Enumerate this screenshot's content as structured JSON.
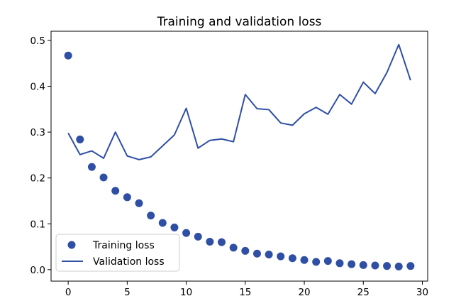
{
  "chart_data": {
    "type": "scatter",
    "title": "Training and validation loss",
    "xlabel": "",
    "ylabel": "",
    "xlim": [
      -1.45,
      30.45
    ],
    "ylim": [
      -0.025,
      0.52
    ],
    "xticks": [
      0,
      5,
      10,
      15,
      20,
      25,
      30
    ],
    "yticks": [
      0.0,
      0.1,
      0.2,
      0.3,
      0.4,
      0.5
    ],
    "grid": false,
    "legend_position": "lower-left",
    "series": [
      {
        "name": "Training loss",
        "style": "markers",
        "color": "#2f4fa5",
        "x": [
          0,
          1,
          2,
          3,
          4,
          5,
          6,
          7,
          8,
          9,
          10,
          11,
          12,
          13,
          14,
          15,
          16,
          17,
          18,
          19,
          20,
          21,
          22,
          23,
          24,
          25,
          26,
          27,
          28,
          29
        ],
        "values": [
          0.467,
          0.284,
          0.224,
          0.201,
          0.172,
          0.158,
          0.145,
          0.118,
          0.102,
          0.092,
          0.08,
          0.072,
          0.061,
          0.06,
          0.048,
          0.041,
          0.035,
          0.033,
          0.029,
          0.025,
          0.021,
          0.017,
          0.019,
          0.014,
          0.012,
          0.01,
          0.009,
          0.008,
          0.007,
          0.008
        ]
      },
      {
        "name": "Validation loss",
        "style": "line",
        "color": "#2f4fa5",
        "x": [
          0,
          1,
          2,
          3,
          4,
          5,
          6,
          7,
          8,
          9,
          10,
          11,
          12,
          13,
          14,
          15,
          16,
          17,
          18,
          19,
          20,
          21,
          22,
          23,
          24,
          25,
          26,
          27,
          28,
          29
        ],
        "values": [
          0.298,
          0.251,
          0.259,
          0.243,
          0.3,
          0.248,
          0.24,
          0.246,
          0.27,
          0.294,
          0.352,
          0.265,
          0.282,
          0.285,
          0.279,
          0.382,
          0.351,
          0.349,
          0.32,
          0.315,
          0.34,
          0.354,
          0.339,
          0.382,
          0.361,
          0.409,
          0.384,
          0.43,
          0.491,
          0.413
        ]
      }
    ]
  }
}
